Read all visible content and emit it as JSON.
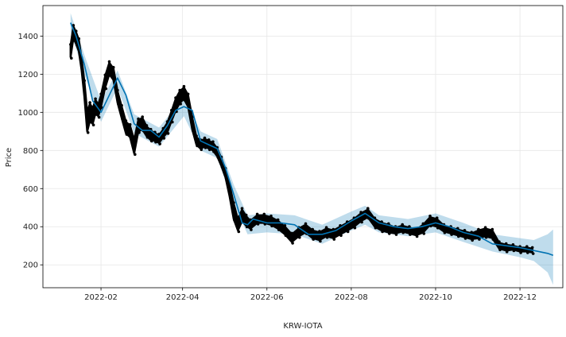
{
  "chart_data": {
    "type": "line",
    "title": "",
    "xlabel": "KRW-IOTA",
    "ylabel": "Price",
    "x_ticks": [
      "2022-02",
      "2022-04",
      "2022-06",
      "2022-08",
      "2022-10",
      "2022-12"
    ],
    "y_ticks": [
      200,
      400,
      600,
      800,
      1000,
      1200,
      1400
    ],
    "xlim": [
      "2021-12-21",
      "2023-01-01"
    ],
    "ylim": [
      80,
      1560
    ],
    "grid": true,
    "colors": {
      "forecast": "#0072b2",
      "uncertainty": "#0072b2",
      "observed": "#000000"
    },
    "series": [
      {
        "role": "forecast",
        "x": [
          "2022-01-10",
          "2022-01-14",
          "2022-01-20",
          "2022-01-26",
          "2022-02-01",
          "2022-02-07",
          "2022-02-13",
          "2022-02-19",
          "2022-02-25",
          "2022-03-03",
          "2022-03-09",
          "2022-03-15",
          "2022-03-21",
          "2022-03-27",
          "2022-04-02",
          "2022-04-08",
          "2022-04-14",
          "2022-04-20",
          "2022-04-26",
          "2022-05-02",
          "2022-05-08",
          "2022-05-14",
          "2022-05-18",
          "2022-05-22",
          "2022-06-01",
          "2022-06-11",
          "2022-06-21",
          "2022-07-01",
          "2022-07-11",
          "2022-07-21",
          "2022-08-01",
          "2022-08-11",
          "2022-08-21",
          "2022-09-01",
          "2022-09-11",
          "2022-09-21",
          "2022-10-01",
          "2022-10-11",
          "2022-10-21",
          "2022-11-01",
          "2022-11-11",
          "2022-11-21",
          "2022-12-01",
          "2022-12-11",
          "2022-12-21",
          "2022-12-25"
        ],
        "y": [
          1470,
          1400,
          1250,
          1060,
          1000,
          1090,
          1180,
          1090,
          940,
          905,
          905,
          870,
          930,
          1010,
          1030,
          1010,
          850,
          830,
          810,
          710,
          570,
          420,
          410,
          440,
          420,
          420,
          410,
          360,
          360,
          380,
          430,
          470,
          420,
          400,
          390,
          400,
          420,
          400,
          370,
          350,
          310,
          300,
          290,
          275,
          260,
          250
        ]
      },
      {
        "role": "uncertainty",
        "x": [
          "2022-01-10",
          "2022-01-20",
          "2022-02-01",
          "2022-02-13",
          "2022-02-25",
          "2022-03-15",
          "2022-04-02",
          "2022-04-14",
          "2022-04-26",
          "2022-05-08",
          "2022-05-18",
          "2022-06-01",
          "2022-06-21",
          "2022-07-11",
          "2022-08-01",
          "2022-08-11",
          "2022-08-21",
          "2022-09-11",
          "2022-10-01",
          "2022-10-21",
          "2022-11-11",
          "2022-12-01",
          "2022-12-11",
          "2022-12-21",
          "2022-12-25"
        ],
        "upper": [
          1520,
          1300,
          1060,
          1220,
          990,
          920,
          1080,
          900,
          860,
          620,
          460,
          470,
          460,
          410,
          480,
          510,
          460,
          440,
          470,
          420,
          360,
          340,
          330,
          360,
          385
        ],
        "lower": [
          1420,
          1200,
          950,
          1130,
          890,
          820,
          980,
          800,
          760,
          520,
          360,
          370,
          360,
          310,
          380,
          410,
          370,
          350,
          370,
          320,
          270,
          240,
          220,
          160,
          95
        ]
      },
      {
        "role": "observed",
        "x": [
          "2022-01-10",
          "2022-01-12",
          "2022-01-14",
          "2022-01-16",
          "2022-01-18",
          "2022-01-20",
          "2022-01-22",
          "2022-01-24",
          "2022-01-26",
          "2022-01-28",
          "2022-01-30",
          "2022-02-01",
          "2022-02-04",
          "2022-02-07",
          "2022-02-10",
          "2022-02-13",
          "2022-02-16",
          "2022-02-19",
          "2022-02-22",
          "2022-02-25",
          "2022-02-28",
          "2022-03-03",
          "2022-03-06",
          "2022-03-09",
          "2022-03-12",
          "2022-03-15",
          "2022-03-18",
          "2022-03-21",
          "2022-03-24",
          "2022-03-27",
          "2022-03-30",
          "2022-04-02",
          "2022-04-05",
          "2022-04-08",
          "2022-04-11",
          "2022-04-14",
          "2022-04-17",
          "2022-04-20",
          "2022-04-23",
          "2022-04-26",
          "2022-04-29",
          "2022-05-02",
          "2022-05-05",
          "2022-05-08",
          "2022-05-11",
          "2022-05-14",
          "2022-05-17",
          "2022-05-20",
          "2022-05-25",
          "2022-05-30",
          "2022-06-04",
          "2022-06-09",
          "2022-06-14",
          "2022-06-19",
          "2022-06-24",
          "2022-06-29",
          "2022-07-04",
          "2022-07-09",
          "2022-07-14",
          "2022-07-19",
          "2022-07-24",
          "2022-07-29",
          "2022-08-03",
          "2022-08-08",
          "2022-08-13",
          "2022-08-18",
          "2022-08-23",
          "2022-08-28",
          "2022-09-02",
          "2022-09-07",
          "2022-09-12",
          "2022-09-17",
          "2022-09-22",
          "2022-09-27",
          "2022-10-02",
          "2022-10-07",
          "2022-10-12",
          "2022-10-17",
          "2022-10-22",
          "2022-10-27",
          "2022-11-01",
          "2022-11-06",
          "2022-11-11",
          "2022-11-16",
          "2022-11-21",
          "2022-11-26",
          "2022-12-01",
          "2022-12-06",
          "2022-12-10"
        ],
        "y": [
          1320,
          1420,
          1390,
          1350,
          1250,
          1120,
          950,
          1000,
          980,
          1030,
          1010,
          1060,
          1160,
          1230,
          1200,
          1080,
          1000,
          920,
          900,
          820,
          930,
          940,
          900,
          880,
          870,
          860,
          890,
          920,
          980,
          1040,
          1080,
          1100,
          1060,
          940,
          850,
          830,
          840,
          830,
          820,
          790,
          740,
          680,
          590,
          480,
          410,
          460,
          430,
          410,
          440,
          440,
          430,
          410,
          380,
          340,
          370,
          390,
          360,
          350,
          370,
          360,
          380,
          400,
          420,
          450,
          470,
          420,
          400,
          390,
          380,
          390,
          380,
          370,
          390,
          430,
          420,
          390,
          380,
          370,
          360,
          350,
          360,
          370,
          360,
          300,
          290,
          290,
          280,
          280,
          275
        ],
        "amplitude": [
          60,
          60,
          60,
          60,
          60,
          80,
          100,
          90,
          80,
          70,
          60,
          60,
          60,
          60,
          60,
          60,
          60,
          60,
          60,
          70,
          60,
          60,
          50,
          50,
          40,
          40,
          40,
          50,
          50,
          60,
          60,
          60,
          60,
          60,
          40,
          40,
          40,
          40,
          40,
          40,
          40,
          40,
          60,
          80,
          60,
          60,
          50,
          40,
          40,
          40,
          40,
          40,
          40,
          40,
          40,
          40,
          40,
          40,
          40,
          40,
          40,
          40,
          40,
          40,
          40,
          40,
          40,
          40,
          30,
          30,
          30,
          30,
          40,
          40,
          40,
          30,
          30,
          30,
          30,
          30,
          40,
          40,
          40,
          30,
          30,
          20,
          20,
          20,
          20
        ]
      }
    ]
  }
}
